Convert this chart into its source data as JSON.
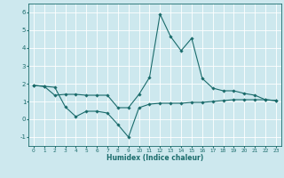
{
  "title": "",
  "xlabel": "Humidex (Indice chaleur)",
  "ylabel": "",
  "bg_color": "#cde8ee",
  "grid_color": "#ffffff",
  "line_color": "#1a6b6b",
  "xlim": [
    -0.5,
    23.5
  ],
  "ylim": [
    -1.5,
    6.5
  ],
  "yticks": [
    -1,
    0,
    1,
    2,
    3,
    4,
    5,
    6
  ],
  "xticks": [
    0,
    1,
    2,
    3,
    4,
    5,
    6,
    7,
    8,
    9,
    10,
    11,
    12,
    13,
    14,
    15,
    16,
    17,
    18,
    19,
    20,
    21,
    22,
    23
  ],
  "line1_x": [
    0,
    1,
    2,
    3,
    4,
    5,
    6,
    7,
    8,
    9,
    10,
    11,
    12,
    13,
    14,
    15,
    16,
    17,
    18,
    19,
    20,
    21,
    22,
    23
  ],
  "line1_y": [
    1.9,
    1.85,
    1.8,
    0.7,
    0.15,
    0.45,
    0.45,
    0.35,
    -0.3,
    -1.0,
    0.65,
    0.85,
    0.9,
    0.9,
    0.9,
    0.95,
    0.95,
    1.0,
    1.05,
    1.1,
    1.1,
    1.1,
    1.1,
    1.05
  ],
  "line2_x": [
    0,
    1,
    2,
    3,
    4,
    5,
    6,
    7,
    8,
    9,
    10,
    11,
    12,
    13,
    14,
    15,
    16,
    17,
    18,
    19,
    20,
    21,
    22,
    23
  ],
  "line2_y": [
    1.9,
    1.85,
    1.35,
    1.4,
    1.4,
    1.35,
    1.35,
    1.35,
    0.65,
    0.65,
    1.4,
    2.35,
    5.9,
    4.65,
    3.85,
    4.55,
    2.3,
    1.75,
    1.6,
    1.6,
    1.45,
    1.35,
    1.1,
    1.05
  ]
}
